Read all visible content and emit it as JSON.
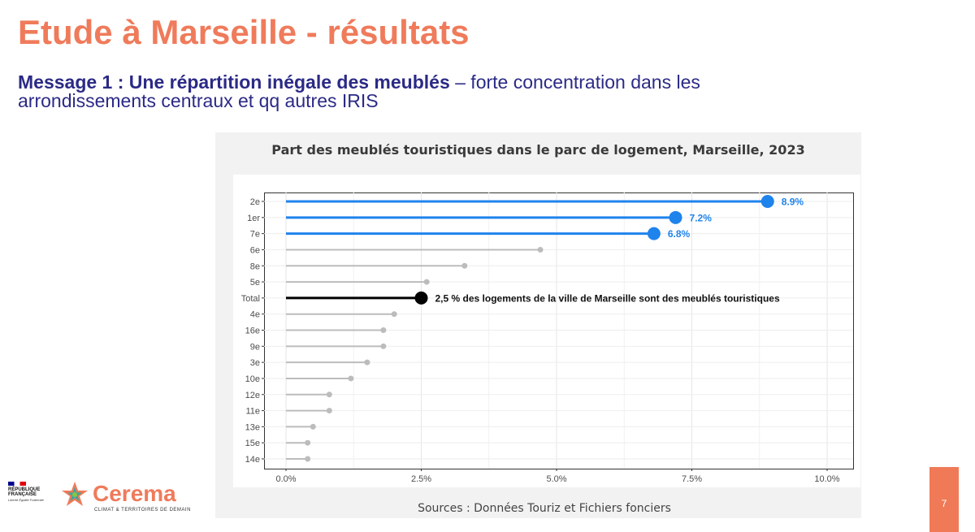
{
  "slide": {
    "title": "Etude à Marseille - résultats",
    "message_bold": "Message 1 : Une répartition inégale des meublés",
    "message_rest": " – forte concentration dans les arrondissements centraux et qq autres IRIS",
    "page_number": "7"
  },
  "logos": {
    "republique": "RÉPUBLIQUE FRANÇAISE",
    "motto": "Liberté Égalité Fraternité",
    "cerema_name": "Cerema",
    "cerema_tagline": "CLIMAT & TERRITOIRES DE DEMAIN"
  },
  "chart_data": {
    "type": "lollipop",
    "title": "Part des meublés touristiques dans le parc de logement, Marseille, 2023",
    "source": "Sources : Données Touriz et Fichiers fonciers",
    "xlim": [
      0,
      10
    ],
    "x_ticks": [
      {
        "value": 0,
        "label": "0.0%"
      },
      {
        "value": 2.5,
        "label": "2.5%"
      },
      {
        "value": 5,
        "label": "5.0%"
      },
      {
        "value": 7.5,
        "label": "7.5%"
      },
      {
        "value": 10,
        "label": "10.0%"
      }
    ],
    "grid": true,
    "colors": {
      "highlight": "#1f83ec",
      "other": "#bcbcbc",
      "total": "#000000"
    },
    "items": [
      {
        "label": "2e",
        "value": 8.9,
        "group": "highlight",
        "value_label": "8.9%"
      },
      {
        "label": "1er",
        "value": 7.2,
        "group": "highlight",
        "value_label": "7.2%"
      },
      {
        "label": "7e",
        "value": 6.8,
        "group": "highlight",
        "value_label": "6.8%"
      },
      {
        "label": "6e",
        "value": 4.7,
        "group": "other"
      },
      {
        "label": "8e",
        "value": 3.3,
        "group": "other"
      },
      {
        "label": "5e",
        "value": 2.6,
        "group": "other"
      },
      {
        "label": "Total",
        "value": 2.5,
        "group": "total",
        "value_label": "2,5 % des logements de la ville de Marseille sont des meublés touristiques"
      },
      {
        "label": "4e",
        "value": 2.0,
        "group": "other"
      },
      {
        "label": "16e",
        "value": 1.8,
        "group": "other"
      },
      {
        "label": "9e",
        "value": 1.8,
        "group": "other"
      },
      {
        "label": "3e",
        "value": 1.5,
        "group": "other"
      },
      {
        "label": "10e",
        "value": 1.2,
        "group": "other"
      },
      {
        "label": "12e",
        "value": 0.8,
        "group": "other"
      },
      {
        "label": "11e",
        "value": 0.8,
        "group": "other"
      },
      {
        "label": "13e",
        "value": 0.5,
        "group": "other"
      },
      {
        "label": "15e",
        "value": 0.4,
        "group": "other"
      },
      {
        "label": "14e",
        "value": 0.4,
        "group": "other"
      }
    ]
  }
}
